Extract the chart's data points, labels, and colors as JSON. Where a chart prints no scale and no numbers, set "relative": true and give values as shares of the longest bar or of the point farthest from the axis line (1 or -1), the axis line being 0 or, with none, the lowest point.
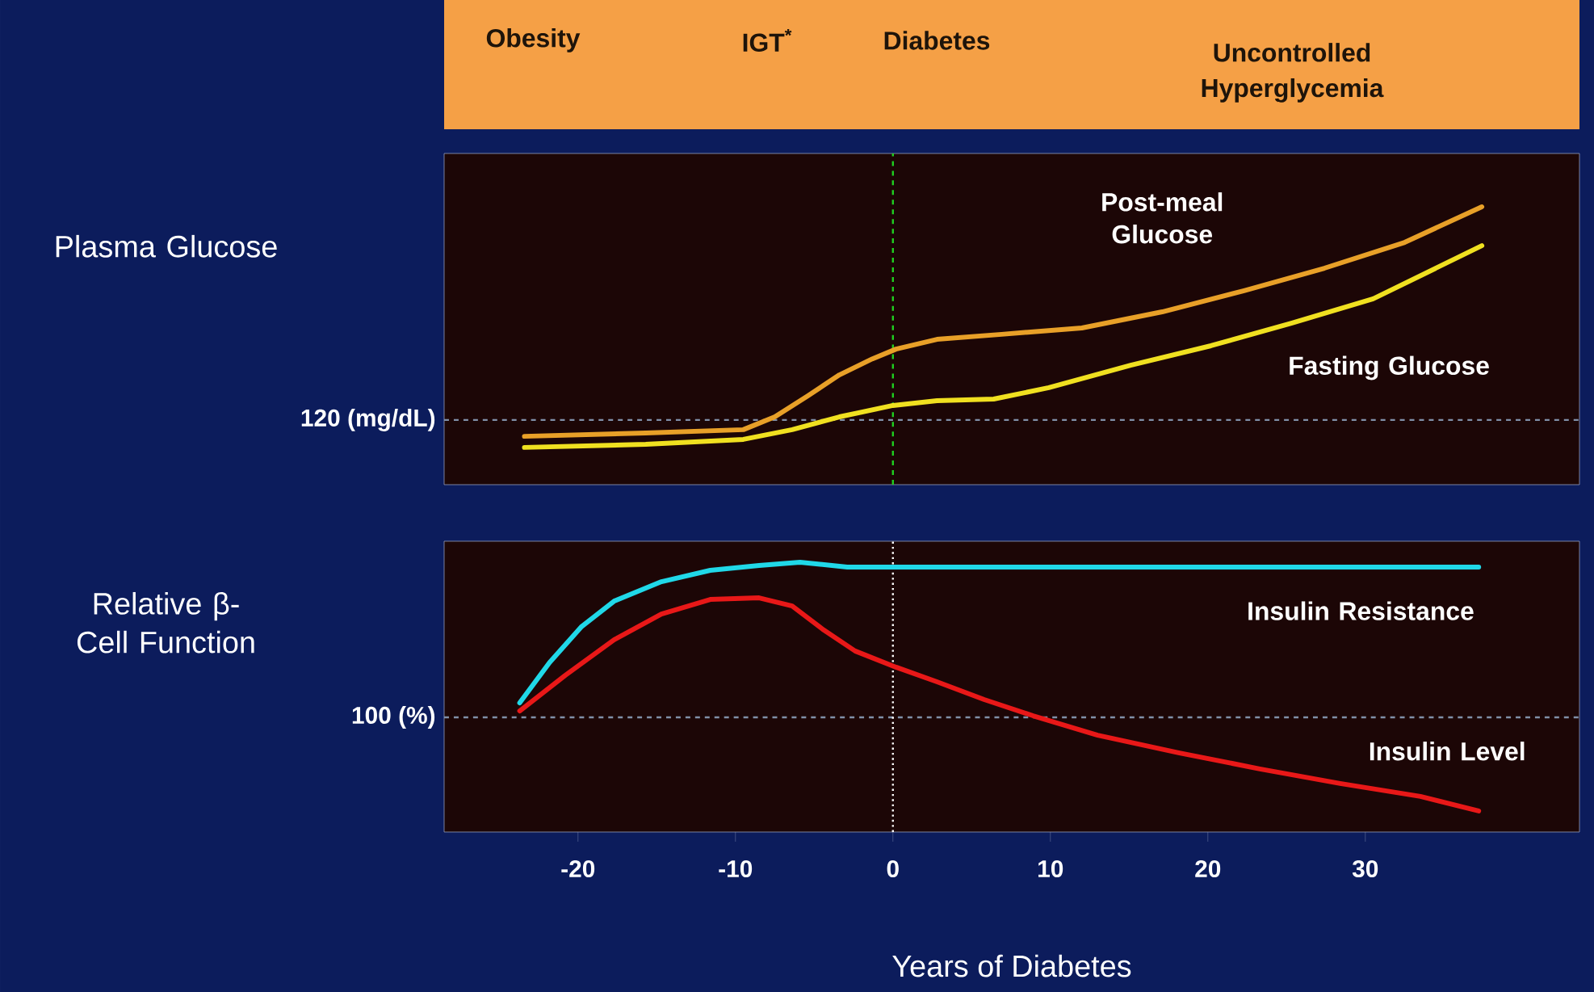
{
  "chart_data": [
    {
      "type": "line",
      "relative": true,
      "ylabel": "Plasma Glucose",
      "xlim": [
        -28.5,
        43.6
      ],
      "tick_labels": false,
      "annotations": [
        "Obesity",
        "IGT$^{*}$",
        "Diabetes",
        "Uncontrolled Hyperglycemia",
        "120 (mg/dL)"
      ],
      "ref_lines": [
        {
          "axis": "y",
          "value": 0.233,
          "color": "#8090a8",
          "line_style": "dashed"
        },
        {
          "axis": "x",
          "value": 0,
          "color": "#20d020",
          "line_style": "dashed"
        }
      ],
      "series": [
        {
          "name": "Post-meal Glucose",
          "color": "#e8a028",
          "x": [
            -23.4,
            -15.7,
            -9.5,
            -7.5,
            -5.4,
            -3.4,
            -1.3,
            0.2,
            2.8,
            6.9,
            12,
            17.1,
            22.3,
            27.4,
            32.5,
            37.4
          ],
          "values": [
            0.174,
            0.186,
            0.198,
            0.244,
            0.32,
            0.395,
            0.453,
            0.488,
            0.523,
            0.541,
            0.564,
            0.622,
            0.698,
            0.779,
            0.872,
            1
          ]
        },
        {
          "name": "Fasting Glucose",
          "color": "#f0e020",
          "x": [
            -23.4,
            -15.7,
            -9.5,
            -6.4,
            -3.4,
            0,
            2.8,
            6.4,
            9.9,
            15.1,
            20.2,
            25.3,
            30.5,
            37.4
          ],
          "values": [
            0.134,
            0.145,
            0.163,
            0.198,
            0.244,
            0.285,
            0.302,
            0.308,
            0.349,
            0.43,
            0.5,
            0.581,
            0.669,
            0.86
          ]
        }
      ]
    },
    {
      "type": "line",
      "relative": true,
      "ylabel": "Relative β-Cell Function",
      "xlabel": "Years of Diabetes",
      "xlim": [
        -28.5,
        43.6
      ],
      "xticks": [
        -20,
        -10,
        0,
        10,
        20,
        30
      ],
      "tick_labels": "x",
      "annotations": [
        "100 (%)"
      ],
      "ref_lines": [
        {
          "axis": "y",
          "value": 0.425,
          "color": "#8090a8",
          "line_style": "dashed"
        },
        {
          "axis": "x",
          "value": 0,
          "color": "#ffffff",
          "line_style": "dotted"
        }
      ],
      "series": [
        {
          "name": "Insulin Resistance",
          "color": "#20d8e8",
          "x": [
            -23.7,
            -21.8,
            -19.8,
            -17.7,
            -14.7,
            -11.6,
            -8.5,
            -5.9,
            -2.9,
            4.8,
            15.1,
            25.3,
            37.2
          ],
          "values": [
            0.479,
            0.629,
            0.76,
            0.856,
            0.928,
            0.97,
            0.988,
            1,
            0.982,
            0.982,
            0.982,
            0.982,
            0.982
          ]
        },
        {
          "name": "Insulin Level",
          "color": "#e81818",
          "x": [
            -23.7,
            -20.8,
            -17.7,
            -14.7,
            -11.6,
            -8.5,
            -6.4,
            -4.4,
            -2.4,
            0.2,
            2.8,
            5.8,
            8.9,
            13,
            18.2,
            23.3,
            28.4,
            33.5,
            37.2
          ],
          "values": [
            0.449,
            0.581,
            0.713,
            0.808,
            0.862,
            0.868,
            0.838,
            0.749,
            0.671,
            0.611,
            0.557,
            0.491,
            0.431,
            0.359,
            0.293,
            0.234,
            0.18,
            0.132,
            0.078
          ]
        }
      ]
    }
  ]
}
